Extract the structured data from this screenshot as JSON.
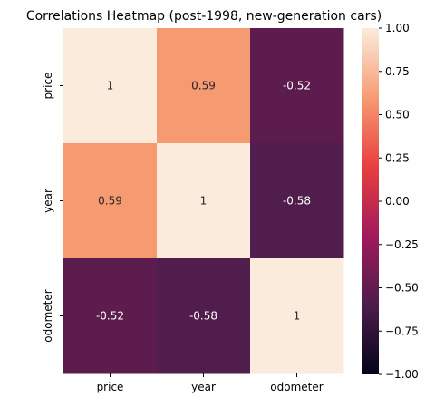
{
  "chart_data": {
    "type": "heatmap",
    "title": "Correlations Heatmap (post-1998, new-generation cars)",
    "x_labels": [
      "price",
      "year",
      "odometer"
    ],
    "y_labels": [
      "price",
      "year",
      "odometer"
    ],
    "values": [
      [
        1,
        0.59,
        -0.52
      ],
      [
        0.59,
        1,
        -0.58
      ],
      [
        -0.52,
        -0.58,
        1
      ]
    ],
    "annotations": [
      [
        "1",
        "0.59",
        "-0.52"
      ],
      [
        "0.59",
        "1",
        "-0.58"
      ],
      [
        "-0.52",
        "-0.58",
        "1"
      ]
    ],
    "vmin": -1.0,
    "vmax": 1.0,
    "colorbar_ticks": [
      "1.00",
      "0.75",
      "0.50",
      "0.25",
      "0.00",
      "−0.25",
      "−0.50",
      "−0.75",
      "−1.00"
    ],
    "colorbar_tick_values": [
      1.0,
      0.75,
      0.5,
      0.25,
      0.0,
      -0.25,
      -0.5,
      -0.75,
      -1.0
    ],
    "colormap": "rocket",
    "colormap_stops": [
      "#03051a",
      "#4c1d4b",
      "#a11a5b",
      "#e83f3f",
      "#f69c73",
      "#faebdd"
    ]
  }
}
